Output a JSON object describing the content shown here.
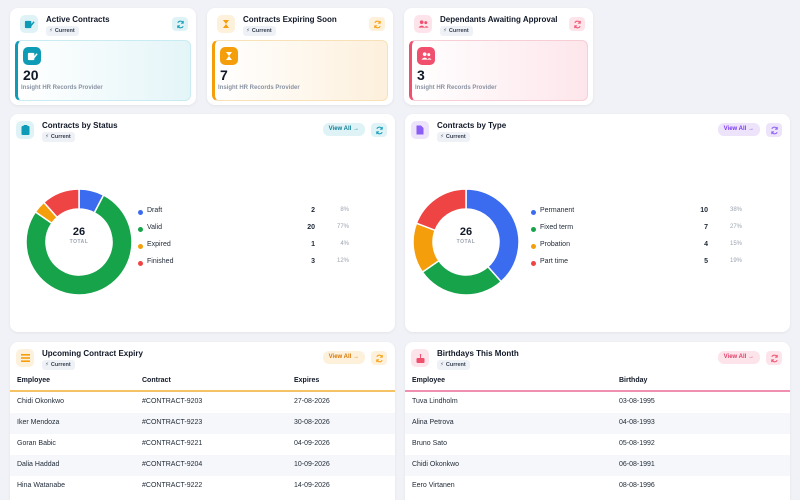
{
  "stats": [
    {
      "title": "Active Contracts",
      "badge": "Current",
      "value": "20",
      "provider": "Insight HR Records Provider",
      "icon": "contract-pen-icon",
      "accent": "#0e9bb5"
    },
    {
      "title": "Contracts Expiring Soon",
      "badge": "Current",
      "value": "7",
      "provider": "Insight HR Records Provider",
      "icon": "hourglass-icon",
      "accent": "#f59e0b"
    },
    {
      "title": "Dependants Awaiting Approval",
      "badge": "Current",
      "value": "3",
      "provider": "Insight HR Records Provider",
      "icon": "users-icon",
      "accent": "#f0506e"
    }
  ],
  "status_chart": {
    "title": "Contracts by Status",
    "badge": "Current",
    "view_all": "View All →",
    "center_value": "26",
    "center_label": "TOTAL",
    "legend": [
      {
        "name": "Draft",
        "count": "2",
        "pct": "8%",
        "color": "#3b6cf0"
      },
      {
        "name": "Valid",
        "count": "20",
        "pct": "77%",
        "color": "#16a34a"
      },
      {
        "name": "Expired",
        "count": "1",
        "pct": "4%",
        "color": "#f59e0b"
      },
      {
        "name": "Finished",
        "count": "3",
        "pct": "12%",
        "color": "#ef4444"
      }
    ]
  },
  "type_chart": {
    "title": "Contracts by Type",
    "badge": "Current",
    "view_all": "View All →",
    "center_value": "26",
    "center_label": "TOTAL",
    "legend": [
      {
        "name": "Permanent",
        "count": "10",
        "pct": "38%",
        "color": "#3b6cf0"
      },
      {
        "name": "Fixed term",
        "count": "7",
        "pct": "27%",
        "color": "#16a34a"
      },
      {
        "name": "Probation",
        "count": "4",
        "pct": "15%",
        "color": "#f59e0b"
      },
      {
        "name": "Part time",
        "count": "5",
        "pct": "19%",
        "color": "#ef4444"
      }
    ]
  },
  "chart_data": [
    {
      "type": "pie",
      "title": "Contracts by Status",
      "categories": [
        "Draft",
        "Valid",
        "Expired",
        "Finished"
      ],
      "values": [
        2,
        20,
        1,
        3
      ],
      "colors": [
        "#3b6cf0",
        "#16a34a",
        "#f59e0b",
        "#ef4444"
      ]
    },
    {
      "type": "pie",
      "title": "Contracts by Type",
      "categories": [
        "Permanent",
        "Fixed term",
        "Probation",
        "Part time"
      ],
      "values": [
        10,
        7,
        4,
        5
      ],
      "colors": [
        "#3b6cf0",
        "#16a34a",
        "#f59e0b",
        "#ef4444"
      ]
    }
  ],
  "expiry": {
    "title": "Upcoming Contract Expiry",
    "badge": "Current",
    "view_all": "View All →",
    "columns": [
      "Employee",
      "Contract",
      "Expires"
    ],
    "rows": [
      [
        "Chidi Okonkwo",
        "#CONTRACT-9203",
        "27-08-2026"
      ],
      [
        "Iker Mendoza",
        "#CONTRACT-9223",
        "30-08-2026"
      ],
      [
        "Goran Babic",
        "#CONTRACT-9221",
        "04-09-2026"
      ],
      [
        "Dalia Haddad",
        "#CONTRACT-9204",
        "10-09-2026"
      ],
      [
        "Hina Watanabe",
        "#CONTRACT-9222",
        "14-09-2026"
      ]
    ]
  },
  "birthdays": {
    "title": "Birthdays This Month",
    "badge": "Current",
    "view_all": "View All →",
    "columns": [
      "Employee",
      "Birthday"
    ],
    "rows": [
      [
        "Tuva Lindholm",
        "03-08-1995"
      ],
      [
        "Alina Petrova",
        "04-08-1993"
      ],
      [
        "Bruno Sato",
        "05-08-1992"
      ],
      [
        "Chidi Okonkwo",
        "06-08-1991"
      ],
      [
        "Eero Virtanen",
        "08-08-1996"
      ]
    ]
  }
}
